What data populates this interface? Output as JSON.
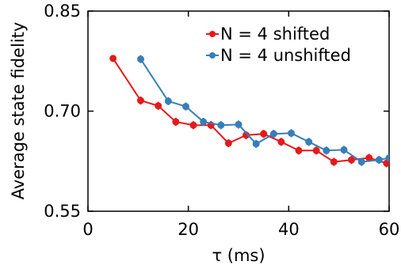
{
  "chart_data": {
    "type": "line",
    "xlabel": "τ (ms)",
    "ylabel": "Average state fidelity",
    "xlim": [
      0,
      60
    ],
    "ylim": [
      0.55,
      0.85
    ],
    "x_ticks": [
      0,
      20,
      40,
      60
    ],
    "x_tick_labels": [
      "0",
      "20",
      "40",
      "60"
    ],
    "y_ticks": [
      0.55,
      0.7,
      0.85
    ],
    "y_tick_labels": [
      "0.55",
      "0.70",
      "0.85"
    ],
    "grid": false,
    "legend_position": "top-right",
    "series": [
      {
        "name": "N = 4 shifted",
        "color": "#e41a1c",
        "x": [
          5.0,
          10.5,
          14.0,
          17.5,
          21.0,
          24.5,
          28.0,
          31.5,
          35.0,
          38.5,
          42.0,
          45.5,
          49.0,
          52.5,
          56.0,
          59.5
        ],
        "y": [
          0.779,
          0.716,
          0.708,
          0.684,
          0.679,
          0.679,
          0.652,
          0.664,
          0.666,
          0.654,
          0.641,
          0.641,
          0.624,
          0.627,
          0.63,
          0.622
        ],
        "err": [
          0.005,
          0.006,
          0.006,
          0.006,
          0.006,
          0.006,
          0.006,
          0.006,
          0.006,
          0.006,
          0.006,
          0.006,
          0.006,
          0.006,
          0.006,
          0.006
        ]
      },
      {
        "name": "N = 4 unshifted",
        "color": "#377eb8",
        "x": [
          10.5,
          16.0,
          19.5,
          23.0,
          26.5,
          30.0,
          33.5,
          37.0,
          40.5,
          44.0,
          47.5,
          51.0,
          54.5,
          58.0,
          60.0
        ],
        "y": [
          0.778,
          0.715,
          0.707,
          0.684,
          0.679,
          0.68,
          0.651,
          0.666,
          0.667,
          0.654,
          0.641,
          0.642,
          0.624,
          0.627,
          0.63
        ],
        "err": [
          0.006,
          0.006,
          0.006,
          0.006,
          0.006,
          0.006,
          0.006,
          0.006,
          0.006,
          0.006,
          0.006,
          0.006,
          0.006,
          0.006,
          0.006
        ]
      }
    ]
  }
}
